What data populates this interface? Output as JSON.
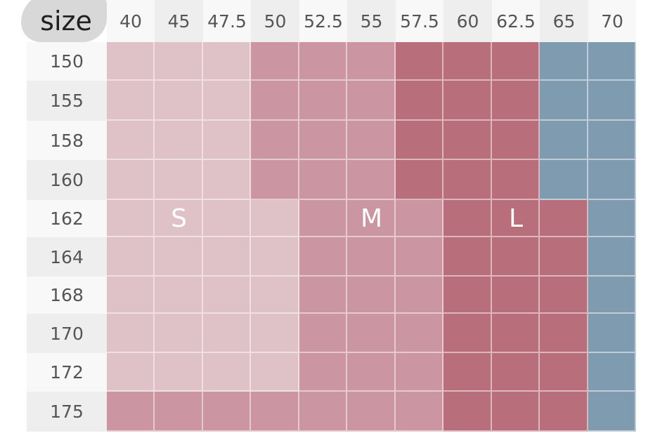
{
  "chart_data": {
    "type": "heatmap",
    "corner_label": "size",
    "x_header": [
      "40",
      "45",
      "47.5",
      "50",
      "52.5",
      "55",
      "57.5",
      "60",
      "62.5",
      "65",
      "70"
    ],
    "y_header": [
      "150",
      "155",
      "158",
      "160",
      "162",
      "164",
      "168",
      "170",
      "172",
      "175"
    ],
    "cells": [
      [
        "S",
        "S",
        "S",
        "M",
        "M",
        "M",
        "L",
        "L",
        "L",
        "XL",
        "XL"
      ],
      [
        "S",
        "S",
        "S",
        "M",
        "M",
        "M",
        "L",
        "L",
        "L",
        "XL",
        "XL"
      ],
      [
        "S",
        "S",
        "S",
        "M",
        "M",
        "M",
        "L",
        "L",
        "L",
        "XL",
        "XL"
      ],
      [
        "S",
        "S",
        "S",
        "M",
        "M",
        "M",
        "L",
        "L",
        "L",
        "XL",
        "XL"
      ],
      [
        "S",
        "S",
        "S",
        "S",
        "M",
        "M",
        "M",
        "L",
        "L",
        "L",
        "XL"
      ],
      [
        "S",
        "S",
        "S",
        "S",
        "M",
        "M",
        "M",
        "L",
        "L",
        "L",
        "XL"
      ],
      [
        "S",
        "S",
        "S",
        "S",
        "M",
        "M",
        "M",
        "L",
        "L",
        "L",
        "XL"
      ],
      [
        "S",
        "S",
        "S",
        "S",
        "M",
        "M",
        "M",
        "L",
        "L",
        "L",
        "XL"
      ],
      [
        "S",
        "S",
        "S",
        "S",
        "M",
        "M",
        "M",
        "L",
        "L",
        "L",
        "XL"
      ],
      [
        "M",
        "M",
        "M",
        "M",
        "M",
        "M",
        "M",
        "L",
        "L",
        "L",
        "XL"
      ]
    ],
    "zone_labels": [
      {
        "text": "S",
        "row": 4,
        "col": 1
      },
      {
        "text": "M",
        "row": 4,
        "col": 5
      },
      {
        "text": "L",
        "row": 4,
        "col": 8
      }
    ],
    "colors": {
      "S": "#dfc1c8",
      "M": "#cb96a1",
      "L": "#b86f7b",
      "XL": "#7f9bb0",
      "header_bg_alt": "#eeeeee",
      "header_bg": "#f8f8f8",
      "header_text": "#555555"
    }
  }
}
